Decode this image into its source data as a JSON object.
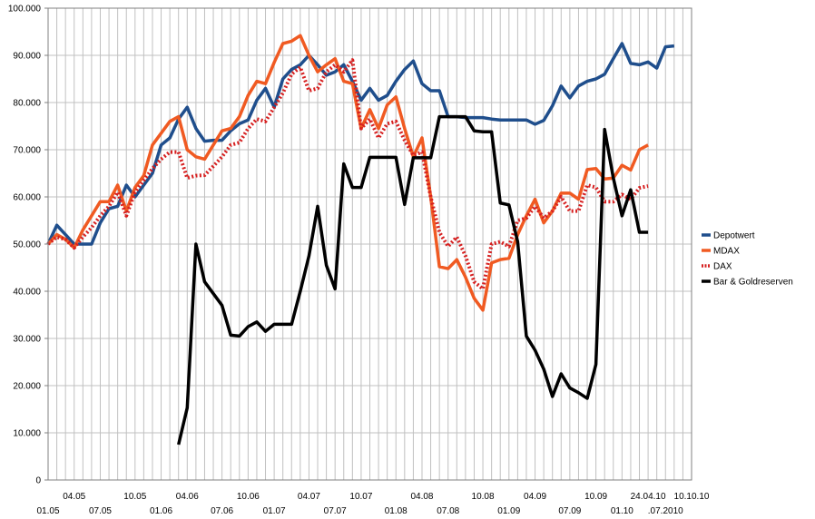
{
  "chart_data": {
    "type": "line",
    "title": "",
    "xlabel": "",
    "ylabel": "",
    "ylim": [
      0,
      100000
    ],
    "grid": true,
    "legend_position": "right",
    "y_ticks": [
      "0",
      "10.000",
      "20.000",
      "30.000",
      "40.000",
      "50.000",
      "60.000",
      "70.000",
      "80.000",
      "90.000",
      "100.000"
    ],
    "x_tick_labels": [
      {
        "i": 0,
        "label": "01.05",
        "row": 2
      },
      {
        "i": 3,
        "label": "04.05",
        "row": 1
      },
      {
        "i": 6,
        "label": "07.05",
        "row": 2
      },
      {
        "i": 10,
        "label": "10.05",
        "row": 1
      },
      {
        "i": 13,
        "label": "01.06",
        "row": 2
      },
      {
        "i": 16,
        "label": "04.06",
        "row": 1
      },
      {
        "i": 20,
        "label": "07.06",
        "row": 2
      },
      {
        "i": 23,
        "label": "10.06",
        "row": 1
      },
      {
        "i": 26,
        "label": "01.07",
        "row": 2
      },
      {
        "i": 30,
        "label": "04.07",
        "row": 1
      },
      {
        "i": 33,
        "label": "07.07",
        "row": 2
      },
      {
        "i": 36,
        "label": "10.07",
        "row": 1
      },
      {
        "i": 40,
        "label": "01.08",
        "row": 2
      },
      {
        "i": 43,
        "label": "04.08",
        "row": 1
      },
      {
        "i": 46,
        "label": "07.08",
        "row": 2
      },
      {
        "i": 50,
        "label": "10.08",
        "row": 1
      },
      {
        "i": 53,
        "label": "01.09",
        "row": 2
      },
      {
        "i": 56,
        "label": "04.09",
        "row": 1
      },
      {
        "i": 60,
        "label": "07.09",
        "row": 2
      },
      {
        "i": 63,
        "label": "10.09",
        "row": 1
      },
      {
        "i": 66,
        "label": "01.10",
        "row": 2
      },
      {
        "i": 69,
        "label": "24.04.10",
        "row": 1
      },
      {
        "i": 71,
        "label": ".07.2010",
        "row": 2
      },
      {
        "i": 74,
        "label": "10.10.10",
        "row": 1
      }
    ],
    "n_points": 75,
    "series": [
      {
        "name": "Depotwert",
        "color": "#1f4e8c",
        "style": "solid",
        "values": [
          50000,
          54000,
          52000,
          50000,
          50000,
          50000,
          54500,
          57500,
          58000,
          62500,
          60000,
          62500,
          65000,
          71000,
          72500,
          76500,
          79000,
          74500,
          71800,
          72000,
          72000,
          74000,
          75500,
          76300,
          80500,
          83000,
          79000,
          85000,
          87000,
          88000,
          90000,
          88000,
          85800,
          86500,
          88000,
          84500,
          80500,
          83000,
          80500,
          81500,
          84500,
          87000,
          88800,
          84000,
          82500,
          82500,
          77000,
          77000,
          76800,
          76800,
          76800,
          76500,
          76300,
          76300,
          76300,
          76300,
          75400,
          76200,
          79300,
          83500,
          81000,
          83500,
          84500,
          85000,
          86000,
          89300,
          92500,
          88300,
          88000,
          88600,
          87300,
          91800,
          92000,
          null,
          null
        ]
      },
      {
        "name": "MDAX",
        "color": "#f05a22",
        "style": "solid",
        "values": [
          50000,
          52000,
          51000,
          49200,
          53000,
          56000,
          59000,
          59000,
          62500,
          57000,
          62000,
          64500,
          71000,
          73500,
          76000,
          77000,
          70000,
          68500,
          68000,
          71000,
          74000,
          74500,
          77000,
          81500,
          84500,
          84000,
          88500,
          92500,
          93000,
          94200,
          90000,
          86500,
          88000,
          89300,
          84500,
          84000,
          74500,
          78500,
          74500,
          79500,
          81200,
          74500,
          68500,
          72500,
          60000,
          45200,
          44800,
          46700,
          43000,
          38500,
          36000,
          46000,
          46700,
          47000,
          52000,
          56000,
          59500,
          54500,
          57000,
          60800,
          60800,
          59500,
          65800,
          66000,
          63800,
          64000,
          66700,
          65700,
          70000,
          71000,
          null,
          null,
          null,
          null,
          null
        ]
      },
      {
        "name": "DAX",
        "color": "#d62020",
        "style": "dotted",
        "values": [
          50000,
          51500,
          51000,
          49200,
          51500,
          53500,
          56000,
          58000,
          61000,
          56000,
          61000,
          63500,
          66000,
          68000,
          69500,
          69500,
          64000,
          64500,
          64600,
          66500,
          68500,
          71000,
          71500,
          74500,
          76500,
          76000,
          79000,
          82000,
          86000,
          87500,
          82500,
          83000,
          86500,
          88000,
          86500,
          89000,
          74500,
          76500,
          72500,
          75500,
          76000,
          72000,
          68800,
          69500,
          60000,
          52500,
          49500,
          51500,
          47500,
          42000,
          40500,
          50000,
          50500,
          49500,
          55000,
          55500,
          58000,
          55500,
          57000,
          60000,
          57000,
          57000,
          62500,
          62000,
          59000,
          59000,
          60500,
          59500,
          61900,
          62300,
          null,
          null,
          null,
          null,
          null
        ]
      },
      {
        "name": "Bar & Goldreserven",
        "color": "#000000",
        "style": "solid",
        "values": [
          null,
          null,
          null,
          null,
          null,
          null,
          null,
          null,
          null,
          null,
          null,
          null,
          null,
          null,
          null,
          7500,
          15300,
          50000,
          42000,
          39500,
          37000,
          30700,
          30500,
          32500,
          33500,
          31500,
          33000,
          33000,
          33000,
          40000,
          47500,
          58000,
          45500,
          40500,
          67000,
          62000,
          62000,
          68400,
          68400,
          68400,
          68400,
          58400,
          68300,
          68300,
          68300,
          77000,
          77000,
          77000,
          77000,
          74000,
          73800,
          73800,
          58700,
          58300,
          50500,
          30500,
          27500,
          23500,
          17700,
          22500,
          19500,
          18500,
          17300,
          24500,
          74300,
          64000,
          56000,
          61500,
          52500,
          52500,
          null,
          null,
          null,
          null,
          null
        ]
      }
    ]
  }
}
